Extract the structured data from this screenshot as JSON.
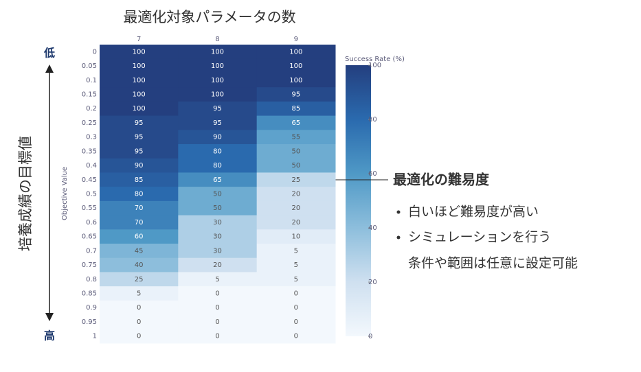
{
  "chart_data": {
    "type": "heatmap",
    "title": "最適化対象パラメータの数",
    "ylabel": "Objective Value",
    "x": [
      7,
      8,
      9
    ],
    "y": [
      0,
      0.05,
      0.1,
      0.15,
      0.2,
      0.25,
      0.3,
      0.35,
      0.4,
      0.45,
      0.5,
      0.55,
      0.6,
      0.65,
      0.7,
      0.75,
      0.8,
      0.85,
      0.9,
      0.95,
      1
    ],
    "z": [
      [
        100,
        100,
        100
      ],
      [
        100,
        100,
        100
      ],
      [
        100,
        100,
        100
      ],
      [
        100,
        100,
        95
      ],
      [
        100,
        95,
        85
      ],
      [
        95,
        95,
        65
      ],
      [
        95,
        90,
        55
      ],
      [
        95,
        80,
        50
      ],
      [
        90,
        80,
        50
      ],
      [
        85,
        65,
        25
      ],
      [
        80,
        50,
        20
      ],
      [
        70,
        50,
        20
      ],
      [
        70,
        30,
        20
      ],
      [
        60,
        30,
        10
      ],
      [
        45,
        30,
        5
      ],
      [
        40,
        20,
        5
      ],
      [
        25,
        5,
        5
      ],
      [
        5,
        0,
        0
      ],
      [
        0,
        0,
        0
      ],
      [
        0,
        0,
        0
      ],
      [
        0,
        0,
        0
      ]
    ],
    "colorbar_title": "Success Rate (%)",
    "zlim": [
      0,
      100
    ],
    "zticks": [
      0,
      20,
      40,
      60,
      80,
      100
    ]
  },
  "annotations": {
    "top": "低",
    "bottom": "高",
    "axis_note": "培養成績の目標値",
    "difficulty_title": "最適化の難易度",
    "notes": [
      "白いほど難易度が高い",
      "シミュレーションを行う",
      "条件や範囲は任意に設定可能"
    ]
  }
}
